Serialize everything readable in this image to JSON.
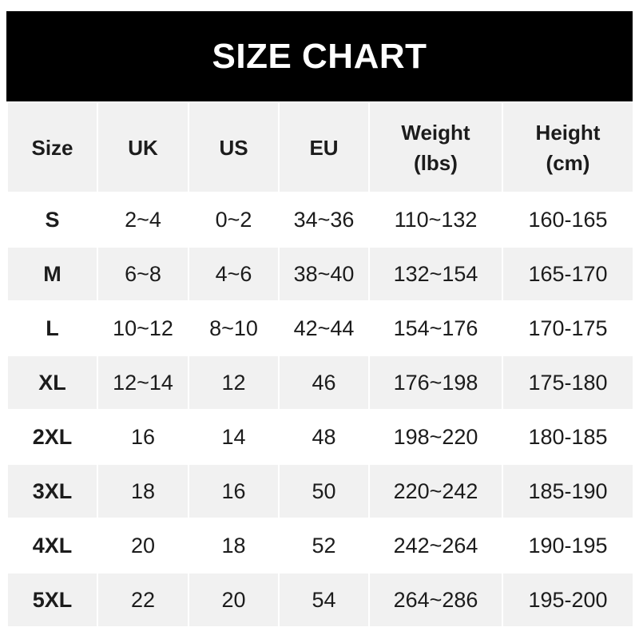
{
  "title": "SIZE CHART",
  "headers": [
    "Size",
    "UK",
    "US",
    "EU",
    "Weight\n(lbs)",
    "Height\n(cm)"
  ],
  "header_lines": [
    [
      "Size"
    ],
    [
      "UK"
    ],
    [
      "US"
    ],
    [
      "EU"
    ],
    [
      "Weight",
      "(lbs)"
    ],
    [
      "Height",
      "(cm)"
    ]
  ],
  "rows": [
    [
      "S",
      "2~4",
      "0~2",
      "34~36",
      "110~132",
      "160-165"
    ],
    [
      "M",
      "6~8",
      "4~6",
      "38~40",
      "132~154",
      "165-170"
    ],
    [
      "L",
      "10~12",
      "8~10",
      "42~44",
      "154~176",
      "170-175"
    ],
    [
      "XL",
      "12~14",
      "12",
      "46",
      "176~198",
      "175-180"
    ],
    [
      "2XL",
      "16",
      "14",
      "48",
      "198~220",
      "180-185"
    ],
    [
      "3XL",
      "18",
      "16",
      "50",
      "220~242",
      "185-190"
    ],
    [
      "4XL",
      "20",
      "18",
      "52",
      "242~264",
      "190-195"
    ],
    [
      "5XL",
      "22",
      "20",
      "54",
      "264~286",
      "195-200"
    ]
  ],
  "colors": {
    "title_bg": "#000000",
    "header_bg": "#f1f1f1",
    "stripe": "#f1f1f1",
    "text": "#1c1c1c"
  }
}
